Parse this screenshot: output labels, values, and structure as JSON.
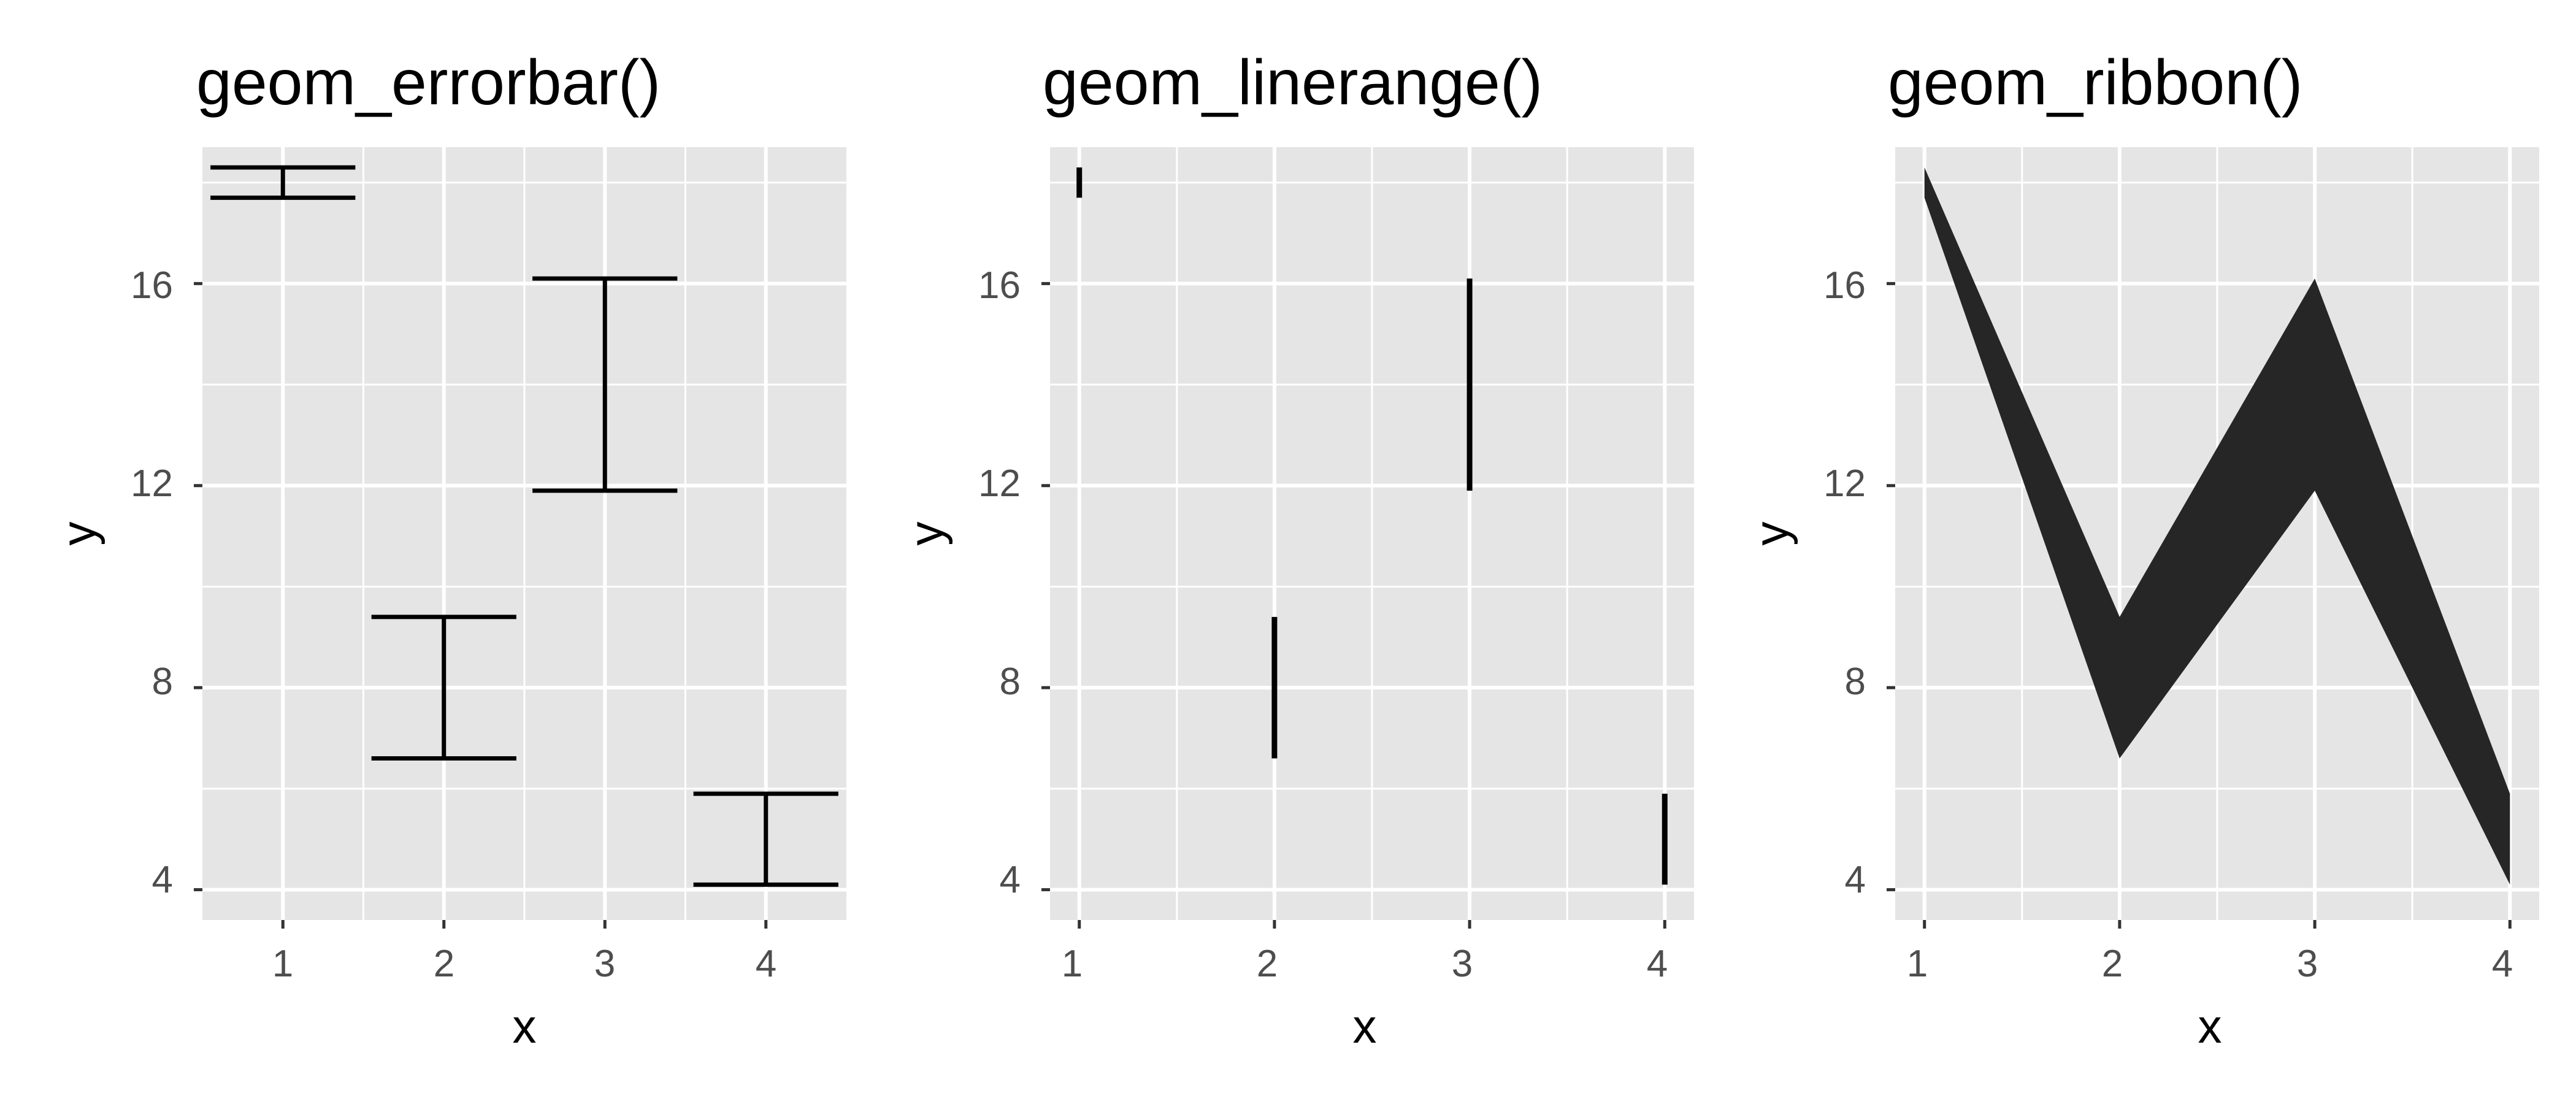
{
  "colors": {
    "panel_background": "#e5e5e5",
    "grid_line": "#ffffff",
    "geom": "#000000",
    "ribbon_fill": "#262626",
    "tick_label": "#4d4d4d",
    "tick_mark": "#333333"
  },
  "chart_data": [
    {
      "type": "errorbar",
      "title": "geom_errorbar()",
      "xlabel": "x",
      "ylabel": "y",
      "x_ticks": [
        "1",
        "2",
        "3",
        "4"
      ],
      "y_ticks": [
        "4",
        "8",
        "12",
        "16"
      ],
      "xlim": [
        0.5,
        4.5
      ],
      "ylim": [
        3.4,
        18.7
      ],
      "grid": true,
      "points": [
        {
          "x": 1,
          "ymin": 17.7,
          "ymax": 18.3
        },
        {
          "x": 2,
          "ymin": 6.6,
          "ymax": 9.4
        },
        {
          "x": 3,
          "ymin": 11.9,
          "ymax": 16.1
        },
        {
          "x": 4,
          "ymin": 4.1,
          "ymax": 5.9
        }
      ]
    },
    {
      "type": "linerange",
      "title": "geom_linerange()",
      "xlabel": "x",
      "ylabel": "y",
      "x_ticks": [
        "1",
        "2",
        "3",
        "4"
      ],
      "y_ticks": [
        "4",
        "8",
        "12",
        "16"
      ],
      "xlim": [
        0.85,
        4.15
      ],
      "ylim": [
        3.4,
        18.7
      ],
      "grid": true,
      "points": [
        {
          "x": 1,
          "ymin": 17.7,
          "ymax": 18.3
        },
        {
          "x": 2,
          "ymin": 6.6,
          "ymax": 9.4
        },
        {
          "x": 3,
          "ymin": 11.9,
          "ymax": 16.1
        },
        {
          "x": 4,
          "ymin": 4.1,
          "ymax": 5.9
        }
      ]
    },
    {
      "type": "ribbon",
      "title": "geom_ribbon()",
      "xlabel": "x",
      "ylabel": "y",
      "x_ticks": [
        "1",
        "2",
        "3",
        "4"
      ],
      "y_ticks": [
        "4",
        "8",
        "12",
        "16"
      ],
      "xlim": [
        0.85,
        4.15
      ],
      "ylim": [
        3.4,
        18.7
      ],
      "grid": true,
      "points": [
        {
          "x": 1,
          "ymin": 17.7,
          "ymax": 18.3
        },
        {
          "x": 2,
          "ymin": 6.6,
          "ymax": 9.4
        },
        {
          "x": 3,
          "ymin": 11.9,
          "ymax": 16.1
        },
        {
          "x": 4,
          "ymin": 4.1,
          "ymax": 5.9
        }
      ]
    }
  ]
}
